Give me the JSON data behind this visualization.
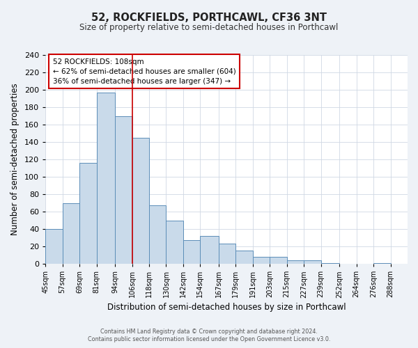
{
  "title": "52, ROCKFIELDS, PORTHCAWL, CF36 3NT",
  "subtitle": "Size of property relative to semi-detached houses in Porthcawl",
  "xlabel": "Distribution of semi-detached houses by size in Porthcawl",
  "ylabel": "Number of semi-detached properties",
  "bin_labels": [
    "45sqm",
    "57sqm",
    "69sqm",
    "81sqm",
    "94sqm",
    "106sqm",
    "118sqm",
    "130sqm",
    "142sqm",
    "154sqm",
    "167sqm",
    "179sqm",
    "191sqm",
    "203sqm",
    "215sqm",
    "227sqm",
    "239sqm",
    "252sqm",
    "264sqm",
    "276sqm",
    "288sqm"
  ],
  "bin_edges": [
    45,
    57,
    69,
    81,
    94,
    106,
    118,
    130,
    142,
    154,
    167,
    179,
    191,
    203,
    215,
    227,
    239,
    252,
    264,
    276,
    288
  ],
  "bar_values": [
    40,
    70,
    116,
    197,
    170,
    145,
    67,
    50,
    27,
    32,
    23,
    15,
    8,
    8,
    4,
    4,
    1,
    0,
    0,
    1
  ],
  "bar_color": "#c9daea",
  "bar_edge_color": "#5b8db8",
  "ylim": [
    0,
    240
  ],
  "yticks": [
    0,
    20,
    40,
    60,
    80,
    100,
    120,
    140,
    160,
    180,
    200,
    220,
    240
  ],
  "red_line_x": 106,
  "annotation_title": "52 ROCKFIELDS: 108sqm",
  "annotation_line1": "← 62% of semi-detached houses are smaller (604)",
  "annotation_line2": "36% of semi-detached houses are larger (347) →",
  "footer1": "Contains HM Land Registry data © Crown copyright and database right 2024.",
  "footer2": "Contains public sector information licensed under the Open Government Licence v3.0.",
  "bg_color": "#eef2f7",
  "plot_bg_color": "#ffffff",
  "grid_color": "#d0d8e4"
}
